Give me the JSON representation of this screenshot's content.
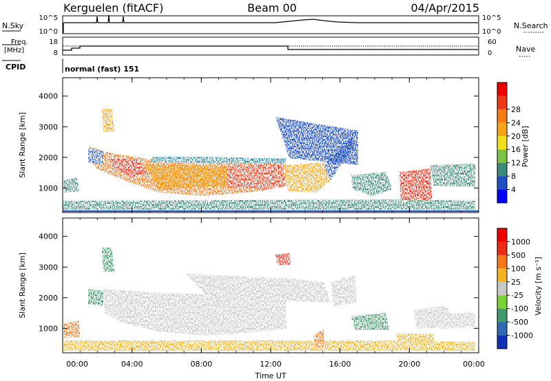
{
  "header": {
    "station": "Kerguelen (fitACF)",
    "beam": "Beam 00",
    "date": "04/Apr/2015"
  },
  "top_panels": {
    "nsky_label": "N.Sky",
    "nsky_ticks": [
      "10^5",
      "10^0"
    ],
    "nsearch_label": "N.Search",
    "nsearch_ticks": [
      "10^5",
      "10^0"
    ],
    "freq_label_1": "Freq.",
    "freq_label_2": "[MHz]",
    "freq_ticks": [
      "18",
      "8"
    ],
    "nave_label": "Nave",
    "nave_ticks": [
      "60",
      "0"
    ],
    "cpid_label": "CPID",
    "cpid_text": "normal (fast) 151"
  },
  "chart_data": [
    {
      "type": "heatmap",
      "name": "power-panel",
      "ylabel": "Slant Range [km]",
      "ylim": [
        200,
        4600
      ],
      "yticks": [
        "1000",
        "2000",
        "3000",
        "4000"
      ],
      "colorbar_label": "Power [dB]",
      "colorbar_ticks": [
        "4",
        "8",
        "12",
        "16",
        "20",
        "24",
        "28"
      ],
      "colorbar_colors": [
        "#0000ff",
        "#1f4fc4",
        "#3a8a78",
        "#7cc244",
        "#f0e01c",
        "#f5a414",
        "#f57a14",
        "#ee3a16",
        "#ee0000"
      ]
    },
    {
      "type": "heatmap",
      "name": "velocity-panel",
      "ylabel": "Slant Range [km]",
      "ylim": [
        200,
        4600
      ],
      "yticks": [
        "1000",
        "2000",
        "3000",
        "4000"
      ],
      "colorbar_label": "Velocity [m s⁻¹]",
      "colorbar_ticks": [
        "1000",
        "500",
        "100",
        "25",
        "-25",
        "-100",
        "-500",
        "-1000"
      ],
      "colorbar_colors": [
        "#1030b8",
        "#2f6ab0",
        "#3f9a6c",
        "#7bd234",
        "#c8c8c8",
        "#f5b41c",
        "#f5781c",
        "#ee2a14",
        "#ee0000"
      ]
    }
  ],
  "xaxis": {
    "xlabel": "Time UT",
    "ticks": [
      "00:00",
      "04:00",
      "08:00",
      "12:00",
      "16:00",
      "20:00",
      "00:00"
    ]
  }
}
